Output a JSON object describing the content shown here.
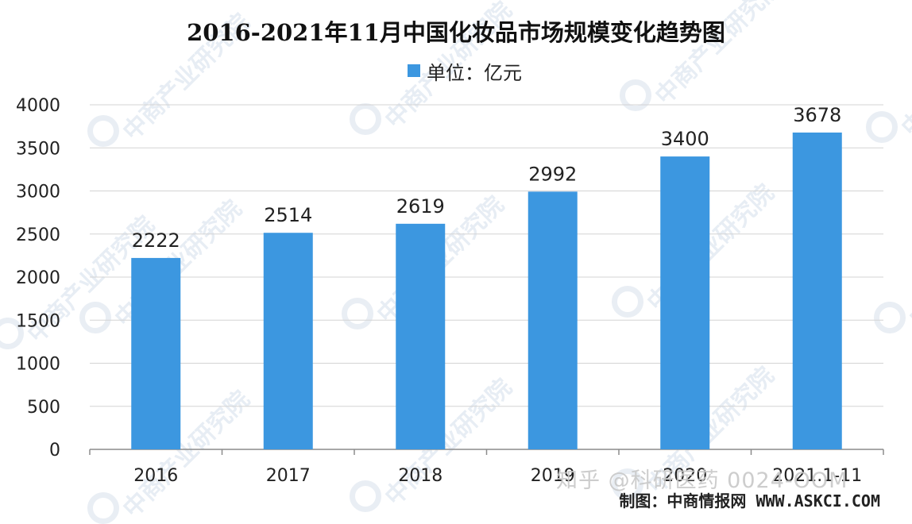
{
  "chart_data": {
    "type": "bar",
    "title": "2016-2021年11月中国化妆品市场规模变化趋势图",
    "unit_legend": "单位：亿元",
    "categories": [
      "2016",
      "2017",
      "2018",
      "2019",
      "2020",
      "2021.1-11"
    ],
    "values": [
      2222,
      2514,
      2619,
      2992,
      3400,
      3678
    ],
    "ylim": [
      0,
      4000
    ],
    "yticks": [
      0,
      500,
      1000,
      1500,
      2000,
      2500,
      3000,
      3500,
      4000
    ],
    "grid": true,
    "legend_position": "top-center",
    "bar_color": "#3c97e0"
  },
  "credit": "制图：中商情报网 WWW.ASKCI.COM",
  "overlay_watermark": "知乎 @科研医药 0024-OOM",
  "watermark_text": "中商产业研究院"
}
